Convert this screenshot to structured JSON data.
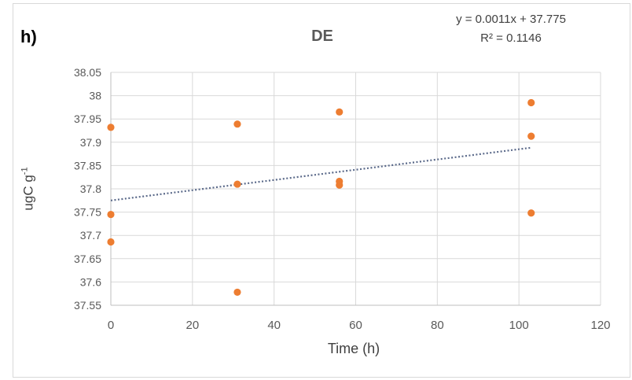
{
  "panel_label": "h)",
  "chart_data": {
    "type": "scatter",
    "title": "DE",
    "xlabel": "Time (h)",
    "ylabel_main": "ugC g",
    "ylabel_sup": "-1",
    "xlim": [
      0,
      120
    ],
    "ylim": [
      37.55,
      38.05
    ],
    "xticks": [
      0,
      20,
      40,
      60,
      80,
      100,
      120
    ],
    "yticks": [
      37.55,
      37.6,
      37.65,
      37.7,
      37.75,
      37.8,
      37.85,
      37.9,
      37.95,
      38,
      38.05
    ],
    "ytick_labels": [
      "37.55",
      "37.6",
      "37.65",
      "37.7",
      "37.75",
      "37.8",
      "37.85",
      "37.9",
      "37.95",
      "38",
      "38.05"
    ],
    "grid": true,
    "point_color": "#ED7D31",
    "trend_color": "#5B6A8A",
    "points": [
      {
        "x": 0,
        "y": 37.932
      },
      {
        "x": 0,
        "y": 37.745
      },
      {
        "x": 0,
        "y": 37.686
      },
      {
        "x": 31,
        "y": 37.939
      },
      {
        "x": 31,
        "y": 37.81
      },
      {
        "x": 31,
        "y": 37.578
      },
      {
        "x": 56,
        "y": 37.965
      },
      {
        "x": 56,
        "y": 37.816
      },
      {
        "x": 56,
        "y": 37.808
      },
      {
        "x": 103,
        "y": 37.985
      },
      {
        "x": 103,
        "y": 37.913
      },
      {
        "x": 103,
        "y": 37.748
      }
    ],
    "trendline": {
      "slope": 0.0011,
      "intercept": 37.775,
      "x_range": [
        0,
        103
      ],
      "equation": "y = 0.0011x + 37.775",
      "r2": "R² = 0.1146"
    }
  }
}
